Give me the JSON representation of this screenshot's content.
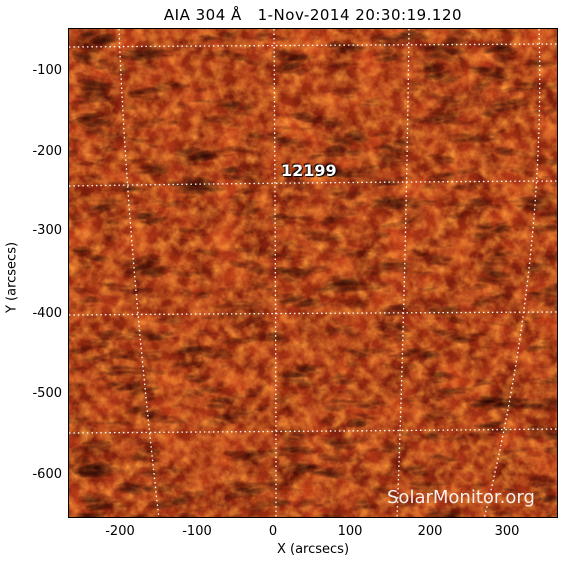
{
  "figure": {
    "title": "AIA 304 Å   1-Nov-2014 20:30:19.120",
    "xlabel": "X (arcsecs)",
    "ylabel": "Y (arcsecs)",
    "x_ticks": [
      "-200",
      "-100",
      "0",
      "100",
      "200",
      "300"
    ],
    "y_ticks": [
      "-100",
      "-200",
      "-300",
      "-400",
      "-500",
      "-600"
    ],
    "active_region_label": "12199",
    "watermark": "SolarMonitor.org",
    "colors": {
      "background_dark": "#3a0a04",
      "mid": "#8a1c0a",
      "bright": "#e0561a",
      "highlight": "#ffb14a",
      "grid": "#ffffff"
    }
  }
}
